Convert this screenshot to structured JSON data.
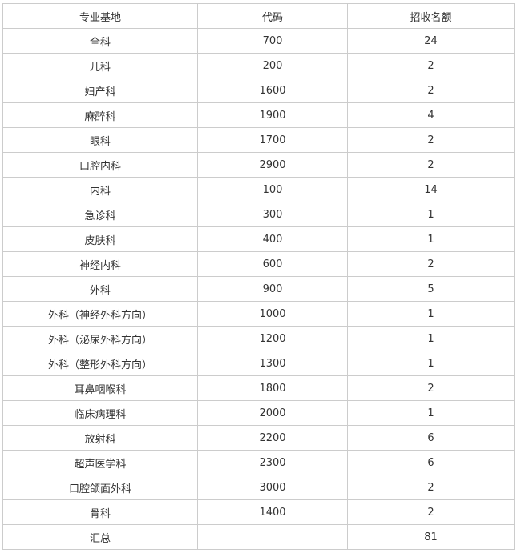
{
  "table": {
    "headers": [
      "专业基地",
      "代码",
      "招收名额"
    ],
    "rows": [
      [
        "全科",
        "700",
        "24"
      ],
      [
        "儿科",
        "200",
        "2"
      ],
      [
        "妇产科",
        "1600",
        "2"
      ],
      [
        "麻醉科",
        "1900",
        "4"
      ],
      [
        "眼科",
        "1700",
        "2"
      ],
      [
        "口腔内科",
        "2900",
        "2"
      ],
      [
        "内科",
        "100",
        "14"
      ],
      [
        "急诊科",
        "300",
        "1"
      ],
      [
        "皮肤科",
        "400",
        "1"
      ],
      [
        "神经内科",
        "600",
        "2"
      ],
      [
        "外科",
        "900",
        "5"
      ],
      [
        "外科（神经外科方向）",
        "1000",
        "1"
      ],
      [
        "外科（泌尿外科方向）",
        "1200",
        "1"
      ],
      [
        "外科（整形外科方向）",
        "1300",
        "1"
      ],
      [
        "耳鼻咽喉科",
        "1800",
        "2"
      ],
      [
        "临床病理科",
        "2000",
        "1"
      ],
      [
        "放射科",
        "2200",
        "6"
      ],
      [
        "超声医学科",
        "2300",
        "6"
      ],
      [
        "口腔颌面外科",
        "3000",
        "2"
      ],
      [
        "骨科",
        "1400",
        "2"
      ]
    ],
    "total": [
      "汇总",
      "",
      "81"
    ]
  }
}
